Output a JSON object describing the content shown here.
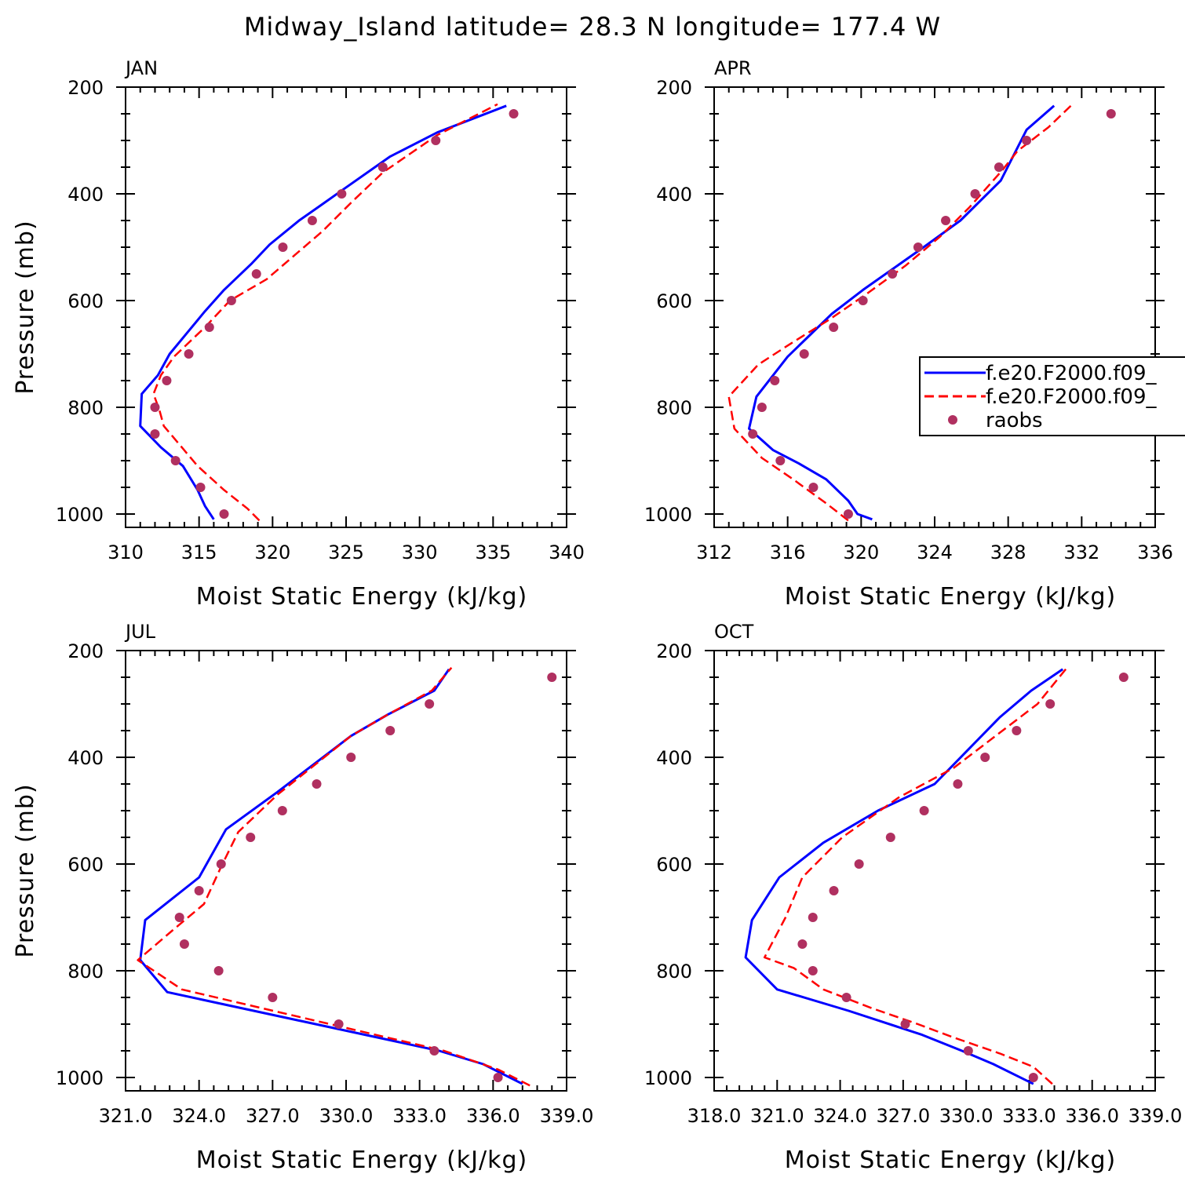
{
  "title": "Midway_Island  latitude= 28.3 N longitude= 177.4 W",
  "colors": {
    "model1": "#0000ff",
    "model2": "#ff0000",
    "raobs": "#b03060"
  },
  "legend": {
    "placement": "right-middle of APR panel",
    "entries": [
      {
        "label": "f.e20.F2000.f09_",
        "style": "solid",
        "color": "#0000ff"
      },
      {
        "label": "f.e20.F2000.f09_",
        "style": "dashed",
        "color": "#ff0000"
      },
      {
        "label": "raobs",
        "style": "dot",
        "color": "#b03060"
      }
    ]
  },
  "chart_data": [
    {
      "type": "line",
      "title": "JAN",
      "xlabel": "Moist Static Energy (kJ/kg)",
      "ylabel": "Pressure (mb)",
      "xlim": [
        310,
        340
      ],
      "ylim": [
        200,
        1025
      ],
      "xticks": [
        310,
        315,
        320,
        325,
        330,
        335,
        340
      ],
      "xtick_labels": [
        "310",
        "315",
        "320",
        "325",
        "330",
        "335",
        "340"
      ],
      "yticks": [
        200,
        400,
        600,
        800,
        1000
      ],
      "ytick_labels": [
        "200",
        "400",
        "600",
        "800",
        "1000"
      ],
      "series": [
        {
          "role": "model1",
          "style": "solid",
          "x": [
            316.0,
            315.4,
            314.9,
            313.9,
            312.4,
            311.0,
            311.1,
            312.2,
            313.0,
            314.2,
            315.4,
            316.7,
            318.6,
            319.8,
            321.8,
            323.1,
            324.9,
            328.0,
            331.2,
            335.9
          ],
          "y": [
            1010,
            985,
            955,
            910,
            875,
            835,
            775,
            740,
            700,
            660,
            620,
            580,
            530,
            495,
            450,
            425,
            390,
            330,
            285,
            235
          ]
        },
        {
          "role": "model2",
          "style": "dashed",
          "x": [
            319.1,
            318.3,
            316.7,
            314.9,
            312.6,
            312.3,
            311.9,
            312.4,
            313.3,
            315.4,
            317.1,
            319.6,
            321.5,
            323.4,
            325.4,
            327.5,
            331.2,
            335.3
          ],
          "y": [
            1012,
            990,
            955,
            910,
            835,
            805,
            775,
            740,
            705,
            650,
            600,
            560,
            515,
            470,
            415,
            360,
            290,
            232
          ]
        },
        {
          "role": "raobs",
          "style": "dot",
          "x": [
            316.7,
            315.1,
            313.4,
            312.0,
            312.0,
            312.8,
            314.3,
            315.7,
            317.2,
            318.9,
            320.7,
            322.7,
            324.7,
            327.5,
            331.1,
            336.4
          ],
          "y": [
            1000,
            950,
            900,
            850,
            800,
            750,
            700,
            650,
            600,
            550,
            500,
            450,
            400,
            350,
            300,
            250
          ]
        }
      ]
    },
    {
      "type": "line",
      "title": "APR",
      "xlabel": "Moist Static Energy (kJ/kg)",
      "ylabel": "",
      "xlim": [
        312,
        336
      ],
      "ylim": [
        200,
        1025
      ],
      "xticks": [
        312,
        316,
        320,
        324,
        328,
        332,
        336
      ],
      "xtick_labels": [
        "312",
        "316",
        "320",
        "324",
        "328",
        "332",
        "336"
      ],
      "yticks": [
        200,
        400,
        600,
        800,
        1000
      ],
      "ytick_labels": [
        "200",
        "400",
        "600",
        "800",
        "1000"
      ],
      "series": [
        {
          "role": "model1",
          "style": "solid",
          "x": [
            320.6,
            319.8,
            319.3,
            318.1,
            316.6,
            315.2,
            313.9,
            314.3,
            316.0,
            318.4,
            320.1,
            323.4,
            325.4,
            327.6,
            329.0,
            330.5
          ],
          "y": [
            1010,
            1000,
            975,
            935,
            905,
            880,
            840,
            780,
            705,
            625,
            580,
            500,
            450,
            375,
            280,
            235
          ]
        },
        {
          "role": "model2",
          "style": "dashed",
          "x": [
            319.3,
            318.1,
            316.3,
            314.6,
            313.1,
            312.8,
            314.4,
            316.2,
            318.3,
            320.4,
            322.4,
            324.3,
            325.9,
            327.7,
            328.5,
            330.2,
            331.5
          ],
          "y": [
            1012,
            980,
            935,
            895,
            840,
            780,
            720,
            680,
            635,
            585,
            535,
            480,
            425,
            355,
            320,
            275,
            232
          ]
        },
        {
          "role": "raobs",
          "style": "dot",
          "x": [
            319.3,
            317.4,
            315.6,
            314.1,
            314.6,
            315.3,
            316.9,
            318.5,
            320.1,
            321.7,
            323.1,
            324.6,
            326.2,
            327.5,
            329.0,
            333.6
          ],
          "y": [
            1000,
            950,
            900,
            850,
            800,
            750,
            700,
            650,
            600,
            550,
            500,
            450,
            400,
            350,
            300,
            250
          ]
        }
      ]
    },
    {
      "type": "line",
      "title": "JUL",
      "xlabel": "Moist Static Energy (kJ/kg)",
      "ylabel": "Pressure (mb)",
      "xlim": [
        321,
        339
      ],
      "ylim": [
        200,
        1025
      ],
      "xticks": [
        321,
        324,
        327,
        330,
        333,
        336,
        339
      ],
      "xtick_labels": [
        "321.0",
        "324.0",
        "327.0",
        "330.0",
        "333.0",
        "336.0",
        "339.0"
      ],
      "yticks": [
        200,
        400,
        600,
        800,
        1000
      ],
      "ytick_labels": [
        "200",
        "400",
        "600",
        "800",
        "1000"
      ],
      "series": [
        {
          "role": "model1",
          "style": "solid",
          "x": [
            337.2,
            335.6,
            333.8,
            322.7,
            321.6,
            321.8,
            324.0,
            325.1,
            327.2,
            330.2,
            331.7,
            333.6,
            334.2
          ],
          "y": [
            1012,
            975,
            950,
            840,
            780,
            705,
            625,
            535,
            465,
            360,
            320,
            275,
            235
          ]
        },
        {
          "role": "model2",
          "style": "dashed",
          "x": [
            337.5,
            336.2,
            334.0,
            323.3,
            321.5,
            322.9,
            324.2,
            324.9,
            325.6,
            327.2,
            330.2,
            331.7,
            333.5,
            334.3
          ],
          "y": [
            1015,
            985,
            950,
            835,
            780,
            725,
            675,
            605,
            540,
            470,
            360,
            320,
            275,
            232
          ]
        },
        {
          "role": "raobs",
          "style": "dot",
          "x": [
            336.2,
            333.6,
            329.7,
            327.0,
            324.8,
            323.4,
            323.2,
            324.0,
            324.9,
            326.1,
            327.4,
            328.8,
            330.2,
            331.8,
            333.4,
            338.4
          ],
          "y": [
            1000,
            950,
            900,
            850,
            800,
            750,
            700,
            650,
            600,
            550,
            500,
            450,
            400,
            350,
            300,
            250
          ]
        }
      ]
    },
    {
      "type": "line",
      "title": "OCT",
      "xlabel": "Moist Static Energy (kJ/kg)",
      "ylabel": "",
      "xlim": [
        318,
        339
      ],
      "ylim": [
        200,
        1025
      ],
      "xticks": [
        318,
        321,
        324,
        327,
        330,
        333,
        336,
        339
      ],
      "xtick_labels": [
        "318.0",
        "321.0",
        "324.0",
        "327.0",
        "330.0",
        "333.0",
        "336.0",
        "339.0"
      ],
      "yticks": [
        200,
        400,
        600,
        800,
        1000
      ],
      "ytick_labels": [
        "200",
        "400",
        "600",
        "800",
        "1000"
      ],
      "series": [
        {
          "role": "model1",
          "style": "solid",
          "x": [
            333.2,
            331.3,
            329.8,
            327.9,
            324.4,
            321.0,
            319.5,
            319.8,
            321.1,
            323.2,
            325.8,
            328.5,
            331.6,
            333.1,
            334.6
          ],
          "y": [
            1012,
            975,
            950,
            920,
            875,
            835,
            775,
            705,
            625,
            560,
            500,
            450,
            325,
            275,
            235
          ]
        },
        {
          "role": "model2",
          "style": "dashed",
          "x": [
            334.1,
            333.2,
            331.6,
            329.4,
            327.7,
            325.5,
            323.2,
            321.8,
            320.4,
            321.4,
            322.2,
            324.1,
            326.8,
            329.4,
            333.4,
            334.8
          ],
          "y": [
            1012,
            980,
            955,
            925,
            900,
            870,
            835,
            795,
            775,
            700,
            625,
            550,
            475,
            420,
            300,
            232
          ]
        },
        {
          "role": "raobs",
          "style": "dot",
          "x": [
            333.2,
            330.1,
            327.1,
            324.3,
            322.7,
            322.2,
            322.7,
            323.7,
            324.9,
            326.4,
            328.0,
            329.6,
            330.9,
            332.4,
            334.0,
            337.5
          ],
          "y": [
            1000,
            950,
            900,
            850,
            800,
            750,
            700,
            650,
            600,
            550,
            500,
            450,
            400,
            350,
            300,
            250
          ]
        }
      ]
    }
  ]
}
